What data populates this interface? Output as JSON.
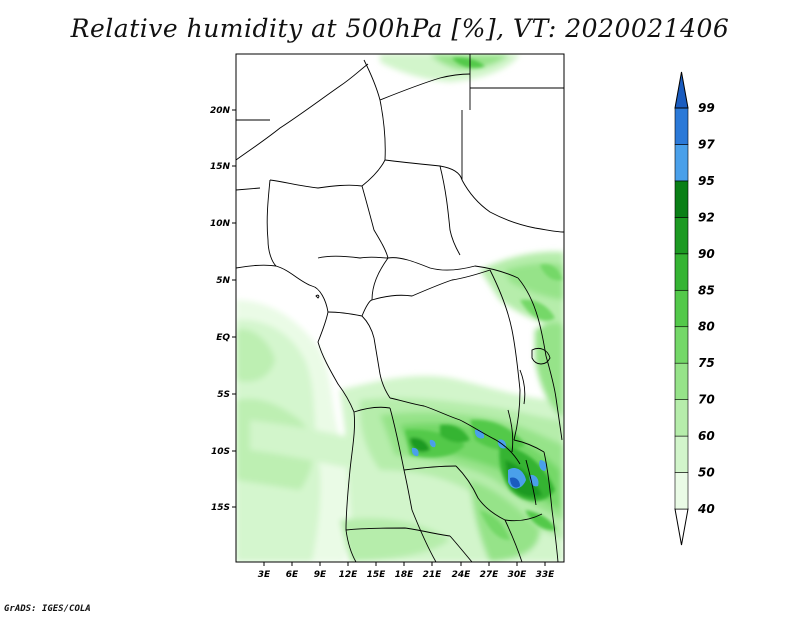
{
  "title": "Relative humidity at 500hPa [%], VT: 2020021406",
  "credit": "GrADS: IGES/COLA",
  "axes": {
    "x_ticks": [
      "3E",
      "6E",
      "9E",
      "12E",
      "15E",
      "18E",
      "21E",
      "24E",
      "27E",
      "30E",
      "33E"
    ],
    "y_ticks": [
      "20N",
      "15N",
      "10N",
      "5N",
      "EQ",
      "5S",
      "10S",
      "15S"
    ]
  },
  "colorbar": {
    "levels": [
      "40",
      "50",
      "60",
      "70",
      "75",
      "80",
      "85",
      "90",
      "92",
      "95",
      "97",
      "99"
    ],
    "colors": [
      "#eafbe6",
      "#d2f5cb",
      "#b6edab",
      "#96e389",
      "#74d868",
      "#53c94a",
      "#35b433",
      "#1c9a22",
      "#0a7f16",
      "#4aa0ea",
      "#2b79d8",
      "#1a5cbf"
    ]
  }
}
